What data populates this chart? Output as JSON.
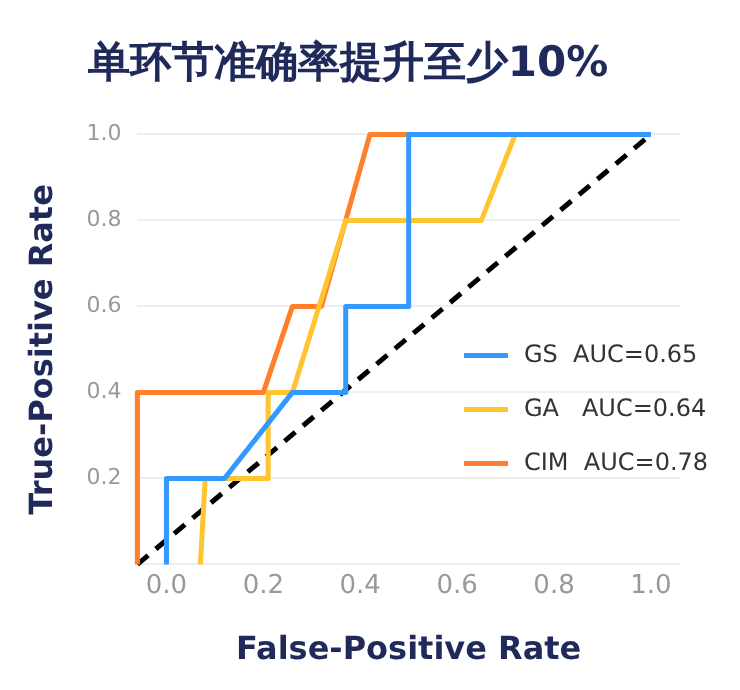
{
  "chart_data": {
    "type": "line",
    "title": "单环节准确率提升至少10%",
    "xlabel": "False-Positive Rate",
    "ylabel": "True-Positive Rate",
    "xlim": [
      -0.06,
      1.06
    ],
    "xticks": [
      {
        "value": 0,
        "label": "0.0"
      },
      0.2,
      0.4,
      0.6,
      0.8,
      {
        "value": 1,
        "label": "1.0"
      }
    ],
    "ylim": [
      0,
      1
    ],
    "yticks": [
      {
        "value": 0,
        "label": null
      },
      0.2,
      0.4,
      0.6,
      0.8,
      {
        "value": 1,
        "label": "1.0"
      }
    ],
    "grid": "y",
    "legend": "right",
    "marker": "none",
    "series": [
      {
        "name": "GS  AUC=0.65",
        "color": "#3399ff",
        "x": [
          0,
          0,
          0.12,
          0.26,
          0.37,
          0.37,
          0.5,
          0.5,
          1.0
        ],
        "values": [
          0,
          0.2,
          0.2,
          0.4,
          0.4,
          0.6,
          0.6,
          1.0,
          1.0
        ]
      },
      {
        "name": "GA   AUC=0.64",
        "color": "#ffc531",
        "x": [
          0.07,
          0.08,
          0.21,
          0.21,
          0.26,
          0.37,
          0.65,
          0.72,
          1.0
        ],
        "values": [
          0,
          0.2,
          0.2,
          0.4,
          0.4,
          0.8,
          0.8,
          1.0,
          1.0
        ]
      },
      {
        "name": "CIM  AUC=0.78",
        "color": "#ff7f2a",
        "x": [
          -0.06,
          -0.06,
          0.2,
          0.26,
          0.32,
          0.37,
          0.42,
          1.0
        ],
        "values": [
          0,
          0.4,
          0.4,
          0.6,
          0.6,
          0.8,
          1.0,
          1.0
        ]
      },
      {
        "color": "#000000",
        "line_style": "dashed",
        "x": [
          -0.06,
          1.0
        ],
        "values": [
          0,
          1.0
        ]
      }
    ]
  }
}
